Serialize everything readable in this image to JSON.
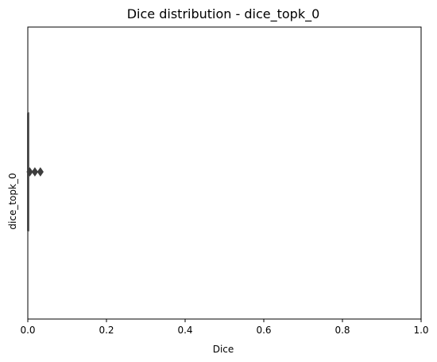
{
  "chart_data": {
    "type": "box",
    "orientation": "horizontal",
    "title": "Dice distribution - dice_topk_0",
    "xlabel": "Dice",
    "ylabel": "dice_topk_0",
    "xlim": [
      0,
      1
    ],
    "xticks": [
      0,
      0.2,
      0.4,
      0.6,
      0.8,
      1
    ],
    "xtick_labels": [
      "0.0",
      "0.2",
      "0.4",
      "0.6",
      "0.8",
      "1.0"
    ],
    "grid": false,
    "series": [
      {
        "category": "dice_topk_0",
        "box": {
          "min": 0.0,
          "q1": 0.0,
          "median": 0.0,
          "q3": 0.0,
          "max": 0.0
        },
        "outliers": [
          0.005,
          0.018,
          0.032
        ]
      }
    ],
    "colors": {
      "axis": "#000000",
      "outlier_fill": "#3d3d3d",
      "whisker": "#3d3d3d"
    }
  }
}
